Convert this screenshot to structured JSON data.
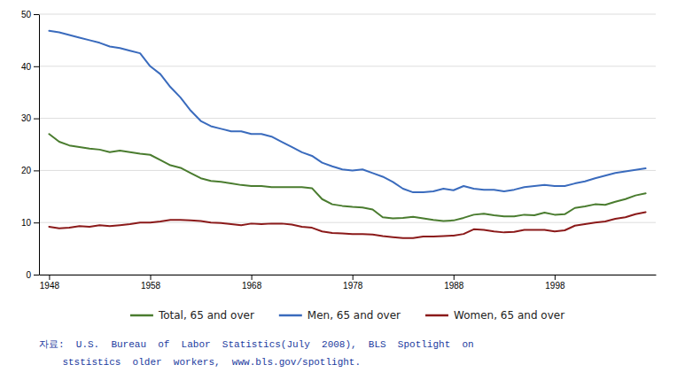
{
  "chart_data": {
    "type": "line",
    "x": [
      1948,
      1949,
      1950,
      1951,
      1952,
      1953,
      1954,
      1955,
      1956,
      1957,
      1958,
      1959,
      1960,
      1961,
      1962,
      1963,
      1964,
      1965,
      1966,
      1967,
      1968,
      1969,
      1970,
      1971,
      1972,
      1973,
      1974,
      1975,
      1976,
      1977,
      1978,
      1979,
      1980,
      1981,
      1982,
      1983,
      1984,
      1985,
      1986,
      1987,
      1988,
      1989,
      1990,
      1991,
      1992,
      1993,
      1994,
      1995,
      1996,
      1997,
      1998,
      1999,
      2000,
      2001,
      2002,
      2003,
      2004,
      2005,
      2006,
      2007
    ],
    "series": [
      {
        "name": "Total, 65 and over",
        "color": "#4a7c2f",
        "values": [
          27.0,
          25.5,
          24.8,
          24.5,
          24.2,
          24.0,
          23.5,
          23.8,
          23.5,
          23.2,
          23.0,
          22.0,
          21.0,
          20.5,
          19.5,
          18.5,
          18.0,
          17.8,
          17.5,
          17.2,
          17.0,
          17.0,
          16.8,
          16.8,
          16.8,
          16.8,
          16.6,
          14.5,
          13.5,
          13.2,
          13.0,
          12.9,
          12.5,
          11.0,
          10.8,
          10.9,
          11.1,
          10.8,
          10.5,
          10.3,
          10.4,
          10.9,
          11.5,
          11.7,
          11.4,
          11.2,
          11.2,
          11.5,
          11.4,
          11.9,
          11.5,
          11.6,
          12.8,
          13.1,
          13.5,
          13.4,
          14.0,
          14.5,
          15.2,
          15.6
        ]
      },
      {
        "name": "Men, 65 and over",
        "color": "#3a6bbd",
        "values": [
          46.8,
          46.5,
          46.0,
          45.5,
          45.0,
          44.5,
          43.8,
          43.5,
          43.0,
          42.5,
          40.0,
          38.5,
          36.0,
          34.0,
          31.5,
          29.5,
          28.5,
          28.0,
          27.5,
          27.5,
          27.0,
          27.0,
          26.5,
          25.5,
          24.5,
          23.5,
          22.8,
          21.5,
          20.8,
          20.2,
          20.0,
          20.2,
          19.5,
          18.8,
          17.8,
          16.5,
          15.8,
          15.8,
          16.0,
          16.5,
          16.2,
          17.0,
          16.5,
          16.3,
          16.3,
          16.0,
          16.3,
          16.8,
          17.0,
          17.2,
          17.0,
          17.0,
          17.5,
          17.9,
          18.5,
          19.0,
          19.5,
          19.8,
          20.1,
          20.4
        ]
      },
      {
        "name": "Women, 65 and over",
        "color": "#8b1a1a",
        "values": [
          9.2,
          8.9,
          9.0,
          9.3,
          9.2,
          9.5,
          9.3,
          9.5,
          9.7,
          10.0,
          10.0,
          10.2,
          10.5,
          10.5,
          10.4,
          10.3,
          10.0,
          9.9,
          9.7,
          9.5,
          9.8,
          9.7,
          9.8,
          9.8,
          9.6,
          9.2,
          9.0,
          8.3,
          8.0,
          7.9,
          7.8,
          7.8,
          7.7,
          7.4,
          7.2,
          7.0,
          7.0,
          7.3,
          7.3,
          7.4,
          7.5,
          7.8,
          8.7,
          8.6,
          8.3,
          8.1,
          8.2,
          8.6,
          8.6,
          8.6,
          8.3,
          8.5,
          9.4,
          9.7,
          10.0,
          10.2,
          10.7,
          11.0,
          11.6,
          12.0
        ]
      }
    ],
    "xlim": [
      1947,
      2008
    ],
    "xticks": [
      1948,
      1958,
      1968,
      1978,
      1988,
      1998
    ],
    "ylim": [
      0,
      50
    ],
    "yticks": [
      0,
      10,
      20,
      30,
      40,
      50
    ],
    "grid": true,
    "legend": "bottom",
    "annotations": [
      {
        "text": "자료:  U.S.  Bureau  of  Labor  Statistics(July  2008),  BLS  Spotlight  on",
        "color": "#1a3a9e"
      },
      {
        "text": "    ststistics  older  workers,  www.bls.gov/spotlight.",
        "color": "#1a3a9e"
      }
    ]
  }
}
